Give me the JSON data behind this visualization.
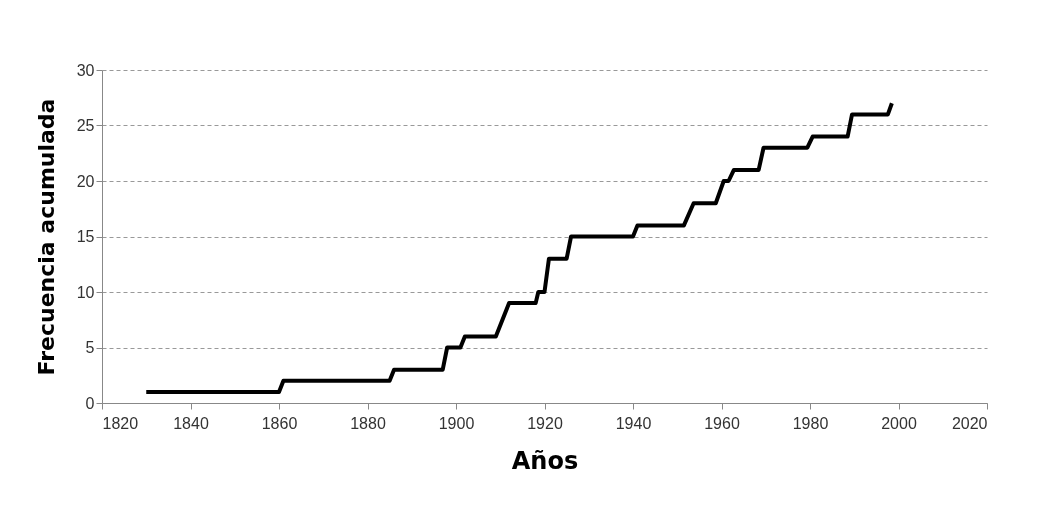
{
  "chart_data": {
    "type": "line",
    "xlabel": "Años",
    "ylabel": "Frecuencia acumulada",
    "series": [
      {
        "color": "#000000",
        "x": [
          1830,
          1860,
          1861,
          1885,
          1886,
          1897,
          1898,
          1901,
          1902,
          1909,
          1912,
          1918,
          1918.6,
          1920,
          1921,
          1925,
          1926,
          1940,
          1941,
          1951.5,
          1953.7,
          1958.7,
          1960.5,
          1961.6,
          1962.8,
          1968.4,
          1969.5,
          1979.4,
          1980.6,
          1988.5,
          1989.5,
          1997.6,
          1998.5
        ],
        "values": [
          1,
          1,
          2,
          2,
          3,
          3,
          5,
          5,
          6,
          6,
          9,
          9,
          10,
          10,
          13,
          13,
          15,
          15,
          16,
          16,
          18,
          18,
          20,
          20,
          21,
          21,
          23,
          23,
          24,
          24,
          26,
          26,
          27
        ]
      }
    ],
    "xlim": [
      1820,
      2020
    ],
    "xticks": [
      1820,
      1840,
      1860,
      1880,
      1900,
      1920,
      1940,
      1960,
      1980,
      2000,
      2020
    ],
    "ylim": [
      0,
      30
    ],
    "yticks": [
      0,
      5,
      10,
      15,
      20,
      25,
      30
    ],
    "grid": "y",
    "marker": "none",
    "line_style": "solid"
  }
}
